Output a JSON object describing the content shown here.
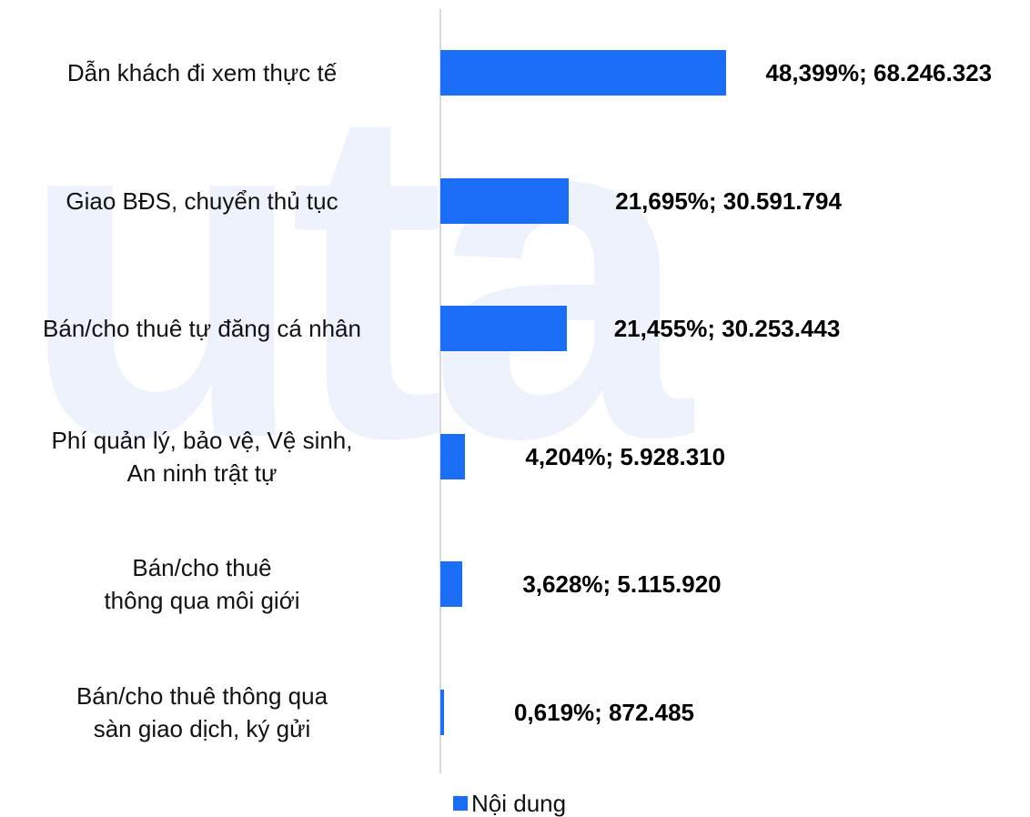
{
  "watermark": "uta",
  "chart_data": {
    "type": "bar",
    "orientation": "horizontal",
    "categories": [
      "Dẫn khách đi xem thực tế",
      "Giao BĐS, chuyển thủ tục",
      "Bán/cho thuê tự đăng cá nhân",
      "Phí quản lý, bảo vệ, Vệ sinh,\nAn ninh trật tự",
      "Bán/cho thuê\nthông qua môi giới",
      "Bán/cho thuê thông qua\nsàn giao dịch, ký gửi"
    ],
    "series": [
      {
        "name": "Nội dung",
        "color": "#1a6ef5",
        "values": [
          48.399,
          21.695,
          21.455,
          4.204,
          3.628,
          0.619
        ],
        "value_labels": [
          "48,399%;  68.246.323",
          "21,695%;  30.591.794",
          "21,455%;  30.253.443",
          "4,204%;  5.928.310",
          "3,628%;  5.115.920",
          "0,619%;  872.485"
        ]
      }
    ],
    "xlim": [
      0,
      100
    ]
  }
}
